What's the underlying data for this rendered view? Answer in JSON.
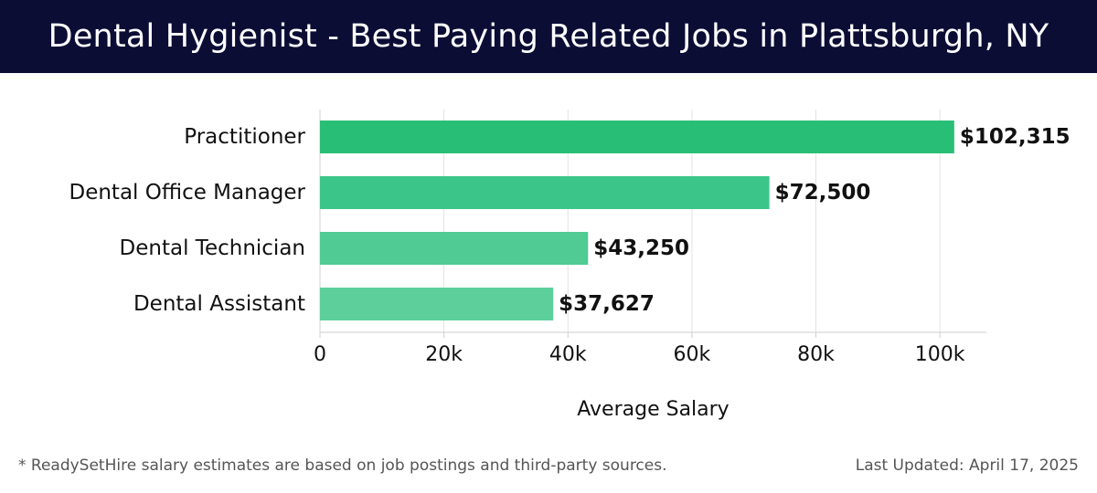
{
  "header": {
    "title": "Dental Hygienist - Best Paying Related Jobs in Plattsburgh, NY",
    "background": "#0b0d35"
  },
  "chart_data": {
    "type": "bar",
    "orientation": "horizontal",
    "categories": [
      "Practitioner",
      "Dental Office Manager",
      "Dental Technician",
      "Dental Assistant"
    ],
    "values": [
      102315,
      72500,
      43250,
      37627
    ],
    "value_labels": [
      "$102,315",
      "$72,500",
      "$43,250",
      "$37,627"
    ],
    "bar_colors": [
      "#29be76",
      "#3cc589",
      "#4fcb93",
      "#5ccf9b"
    ],
    "xlabel": "Average Salary",
    "ylabel": "",
    "xlim": [
      0,
      107500
    ],
    "xticks": [
      0,
      20000,
      40000,
      60000,
      80000,
      100000
    ],
    "xtick_labels": [
      "0",
      "20k",
      "40k",
      "60k",
      "80k",
      "100k"
    ],
    "grid": "vertical"
  },
  "footer": {
    "footnote": "* ReadySetHire salary estimates are based on job postings and third-party sources.",
    "updated": "Last Updated: April 17, 2025"
  }
}
